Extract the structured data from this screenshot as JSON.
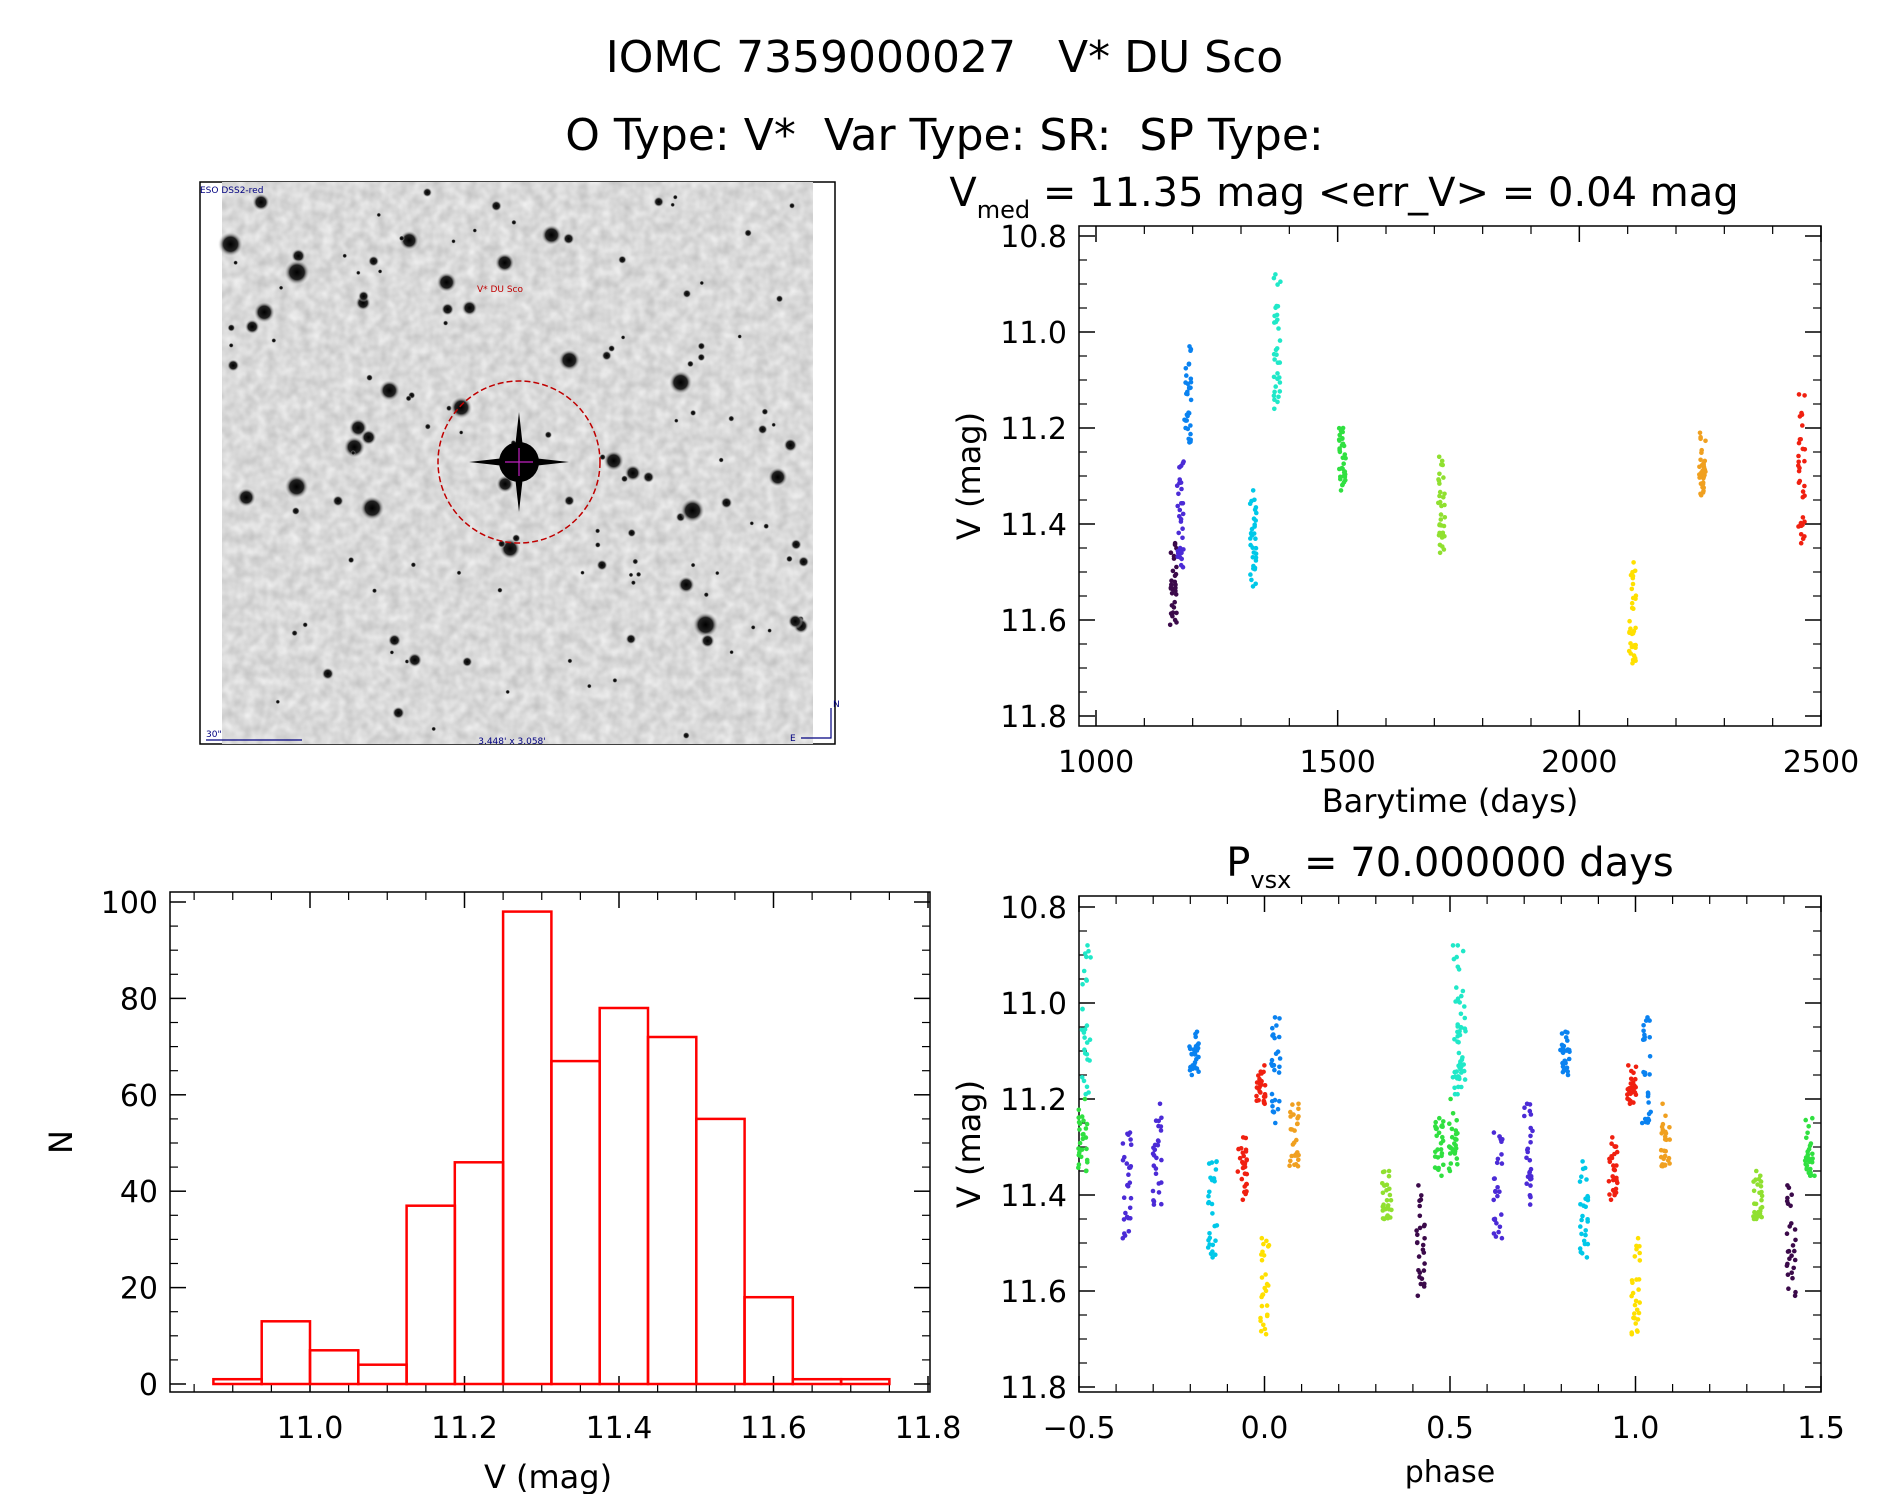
{
  "header": {
    "object_id": "IOMC 7359000027",
    "object_name": "V* DU Sco",
    "o_type": "O Type: V*",
    "var_type": "Var Type: SR:",
    "sp_type": "SP Type:"
  },
  "finder_image": {
    "survey_label": "ESO DSS2-red",
    "target_label": "V* DU Sco",
    "scale_label": "30\"",
    "size_label": "3.448' x 3.058'",
    "compass_n": "N",
    "compass_e": "E"
  },
  "palette": {
    "histogram": "#ff0000",
    "seasons": [
      "#3b0a4a",
      "#4b2bd6",
      "#0a82f0",
      "#00c8e8",
      "#20e8c8",
      "#30e040",
      "#90e030",
      "#ffe000",
      "#f0a020",
      "#f02010"
    ]
  },
  "chart_data": [
    {
      "id": "lightcurve",
      "type": "scatter",
      "title_main": "V",
      "title_sub": "med",
      "title_rest": " = 11.35 mag <err_V> = 0.04 mag",
      "xlabel": "Barytime (days)",
      "ylabel": "V (mag)",
      "xlim": [
        1000,
        2500
      ],
      "ylim": [
        11.8,
        10.8
      ],
      "xticks": [
        "1000",
        "1500",
        "2000",
        "2500"
      ],
      "yticks": [
        "10.8",
        "11.0",
        "11.2",
        "11.4",
        "11.6",
        "11.8"
      ],
      "series": [
        {
          "name": "season-1",
          "x": 1160,
          "ymin": 11.44,
          "ymax": 11.61
        },
        {
          "name": "season-2",
          "x": 1175,
          "ymin": 11.27,
          "ymax": 11.49
        },
        {
          "name": "season-3",
          "x": 1190,
          "ymin": 11.03,
          "ymax": 11.23
        },
        {
          "name": "season-4",
          "x": 1325,
          "ymin": 11.33,
          "ymax": 11.53
        },
        {
          "name": "season-5",
          "x": 1375,
          "ymin": 10.88,
          "ymax": 11.16
        },
        {
          "name": "season-6",
          "x": 1510,
          "ymin": 11.2,
          "ymax": 11.33
        },
        {
          "name": "season-7",
          "x": 1715,
          "ymin": 11.26,
          "ymax": 11.46
        },
        {
          "name": "season-8",
          "x": 2110,
          "ymin": 11.48,
          "ymax": 11.69
        },
        {
          "name": "season-9",
          "x": 2255,
          "ymin": 11.21,
          "ymax": 11.34
        },
        {
          "name": "season-10",
          "x": 2460,
          "ymin": 11.13,
          "ymax": 11.44
        }
      ]
    },
    {
      "id": "histogram",
      "type": "bar",
      "xlabel": "V (mag)",
      "ylabel": "N",
      "xlim": [
        10.83,
        11.83
      ],
      "ylim": [
        0,
        102
      ],
      "xticks": [
        "11.0",
        "11.2",
        "11.4",
        "11.6",
        "11.8"
      ],
      "yticks": [
        "0",
        "20",
        "40",
        "60",
        "80",
        "100"
      ],
      "bin_width": 0.0625,
      "bin_starts": [
        10.875,
        10.9375,
        11.0,
        11.0625,
        11.125,
        11.1875,
        11.25,
        11.3125,
        11.375,
        11.4375,
        11.5,
        11.5625,
        11.625,
        11.6875
      ],
      "values": [
        1,
        13,
        7,
        4,
        37,
        46,
        98,
        67,
        78,
        72,
        55,
        18,
        1,
        1
      ]
    },
    {
      "id": "phased",
      "type": "scatter",
      "title_main": "P",
      "title_sub": "vsx",
      "title_rest": " = 70.000000 days",
      "xlabel": "phase",
      "ylabel": "V (mag)",
      "xlim": [
        -0.5,
        1.5
      ],
      "ylim": [
        11.8,
        10.8
      ],
      "xticks": [
        "−0.5",
        "0.0",
        "0.5",
        "1.0",
        "1.5"
      ],
      "yticks": [
        "10.8",
        "11.0",
        "11.2",
        "11.4",
        "11.6",
        "11.8"
      ],
      "series": [
        {
          "name": "season-1",
          "phase": 0.42,
          "ymin": 11.38,
          "ymax": 11.61
        },
        {
          "name": "season-2",
          "phase": -0.37,
          "ymin": 11.27,
          "ymax": 11.49
        },
        {
          "name": "season-2",
          "phase": -0.29,
          "ymin": 11.21,
          "ymax": 11.42
        },
        {
          "name": "season-3",
          "phase": -0.19,
          "ymin": 11.06,
          "ymax": 11.15
        },
        {
          "name": "season-3",
          "phase": 0.03,
          "ymin": 11.03,
          "ymax": 11.25
        },
        {
          "name": "season-4",
          "phase": -0.14,
          "ymin": 11.33,
          "ymax": 11.53
        },
        {
          "name": "season-5",
          "phase": -0.48,
          "ymin": 10.88,
          "ymax": 11.19
        },
        {
          "name": "season-5",
          "phase": 0.53,
          "ymin": 10.88,
          "ymax": 11.19
        },
        {
          "name": "season-6",
          "phase": -0.49,
          "ymin": 11.2,
          "ymax": 11.35
        },
        {
          "name": "season-6",
          "phase": 0.47,
          "ymin": 11.24,
          "ymax": 11.36
        },
        {
          "name": "season-7",
          "phase": 0.33,
          "ymin": 11.35,
          "ymax": 11.45
        },
        {
          "name": "season-8",
          "phase": 0.0,
          "ymin": 11.49,
          "ymax": 11.69
        },
        {
          "name": "season-9",
          "phase": 0.08,
          "ymin": 11.21,
          "ymax": 11.34
        },
        {
          "name": "season-10",
          "phase": -0.06,
          "ymin": 11.28,
          "ymax": 11.41
        },
        {
          "name": "season-10",
          "phase": -0.01,
          "ymin": 11.13,
          "ymax": 11.21
        }
      ]
    }
  ]
}
